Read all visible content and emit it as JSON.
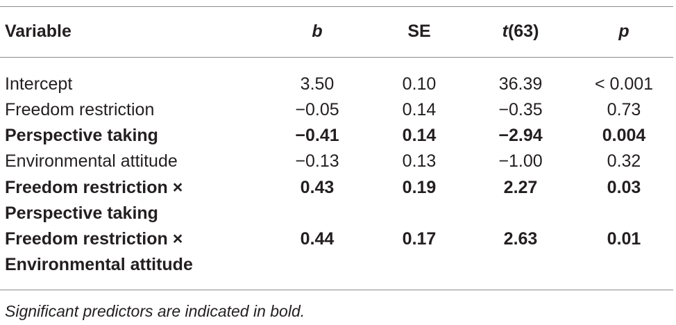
{
  "table": {
    "headers": {
      "variable": "Variable",
      "b": "b",
      "se": "SE",
      "t_italic": "t",
      "t_df": "(63)",
      "p": "p"
    },
    "rows": [
      {
        "variable": "Intercept",
        "variable2": "",
        "b": "3.50",
        "se": "0.10",
        "t": "36.39",
        "p": "< 0.001",
        "bold": false
      },
      {
        "variable": "Freedom restriction",
        "variable2": "",
        "b": "−0.05",
        "se": "0.14",
        "t": "−0.35",
        "p": "0.73",
        "bold": false
      },
      {
        "variable": "Perspective taking",
        "variable2": "",
        "b": "−0.41",
        "se": "0.14",
        "t": "−2.94",
        "p": "0.004",
        "bold": true
      },
      {
        "variable": "Environmental attitude",
        "variable2": "",
        "b": "−0.13",
        "se": "0.13",
        "t": "−1.00",
        "p": "0.32",
        "bold": false
      },
      {
        "variable": "Freedom restriction ×",
        "variable2": "Perspective taking",
        "b": "0.43",
        "se": "0.19",
        "t": "2.27",
        "p": "0.03",
        "bold": true
      },
      {
        "variable": "Freedom restriction ×",
        "variable2": "Environmental attitude",
        "b": "0.44",
        "se": "0.17",
        "t": "2.63",
        "p": "0.01",
        "bold": true
      }
    ]
  },
  "footnote": "Significant predictors are indicated in bold."
}
